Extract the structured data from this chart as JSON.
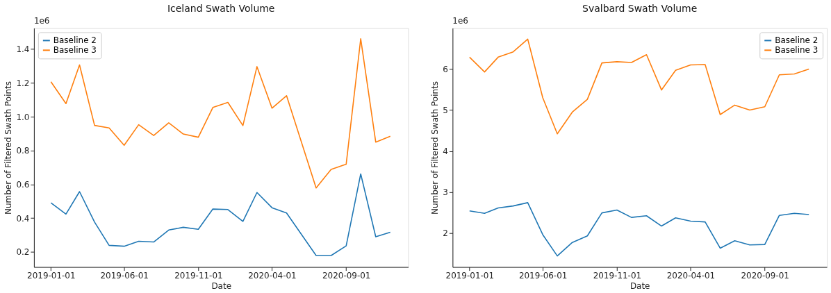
{
  "chart_data": [
    {
      "type": "line",
      "title": "Iceland Swath Volume",
      "xlabel": "Date",
      "ylabel": "Number of Filtered Swath Points",
      "annotations": [
        "1e6"
      ],
      "x": [
        "2019-01-01",
        "2019-02-01",
        "2019-03-01",
        "2019-04-01",
        "2019-05-01",
        "2019-06-01",
        "2019-07-01",
        "2019-08-01",
        "2019-09-01",
        "2019-10-01",
        "2019-11-01",
        "2019-12-01",
        "2020-01-01",
        "2020-02-01",
        "2020-03-01",
        "2020-04-01",
        "2020-05-01",
        "2020-07-01",
        "2020-08-01",
        "2020-09-01",
        "2020-10-01",
        "2020-11-01",
        "2020-12-01"
      ],
      "series": [
        {
          "name": "Baseline 2",
          "color": "#1f77b4",
          "values": [
            0.491,
            0.424,
            0.557,
            0.377,
            0.239,
            0.234,
            0.263,
            0.259,
            0.33,
            0.346,
            0.334,
            0.454,
            0.451,
            0.381,
            0.552,
            0.462,
            0.431,
            0.179,
            0.179,
            0.236,
            0.662,
            0.29,
            0.317
          ]
        },
        {
          "name": "Baseline 3",
          "color": "#ff7f0e",
          "values": [
            1.207,
            1.078,
            1.307,
            0.949,
            0.934,
            0.831,
            0.953,
            0.889,
            0.964,
            0.898,
            0.879,
            1.055,
            1.085,
            0.948,
            1.297,
            1.051,
            1.125,
            0.579,
            0.689,
            0.719,
            1.462,
            0.85,
            0.885
          ]
        }
      ],
      "xlim": [
        "2018-11-27",
        "2021-01-07"
      ],
      "xticks": [
        {
          "value": "2019-01-01",
          "label": "2019-01-01"
        },
        {
          "value": "2019-06-01",
          "label": "2019-06-01"
        },
        {
          "value": "2019-11-01",
          "label": "2019-11-01"
        },
        {
          "value": "2020-04-01",
          "label": "2020-04-01"
        },
        {
          "value": "2020-09-01",
          "label": "2020-09-01"
        }
      ],
      "ylim": [
        0.111,
        1.525
      ],
      "yticks": [
        0.2,
        0.4,
        0.6,
        0.8,
        {
          "value": 1,
          "label": "1.0"
        },
        1.2,
        1.4
      ],
      "grid": false,
      "legend": "top left",
      "marker": "none",
      "line_style": "solid"
    },
    {
      "type": "line",
      "title": "Svalbard Swath Volume",
      "xlabel": "Date",
      "ylabel": "Number of Filtered Swath Points",
      "annotations": [
        "1e6"
      ],
      "x": [
        "2019-01-01",
        "2019-02-01",
        "2019-03-01",
        "2019-04-01",
        "2019-05-01",
        "2019-06-01",
        "2019-07-01",
        "2019-08-01",
        "2019-09-01",
        "2019-10-01",
        "2019-11-01",
        "2019-12-01",
        "2020-01-01",
        "2020-02-01",
        "2020-03-01",
        "2020-04-01",
        "2020-05-01",
        "2020-06-01",
        "2020-07-01",
        "2020-08-01",
        "2020-09-01",
        "2020-10-01",
        "2020-11-01",
        "2020-12-01"
      ],
      "series": [
        {
          "name": "Baseline 2",
          "color": "#1f77b4",
          "values": [
            2.54,
            2.48,
            2.61,
            2.66,
            2.74,
            1.96,
            1.44,
            1.77,
            1.93,
            2.49,
            2.56,
            2.38,
            2.42,
            2.17,
            2.37,
            2.29,
            2.27,
            1.63,
            1.81,
            1.71,
            1.72,
            2.43,
            2.48,
            2.45
          ]
        },
        {
          "name": "Baseline 3",
          "color": "#ff7f0e",
          "values": [
            6.29,
            5.93,
            6.29,
            6.42,
            6.73,
            5.3,
            4.42,
            4.95,
            5.26,
            6.15,
            6.18,
            6.16,
            6.35,
            5.49,
            5.97,
            6.1,
            6.11,
            4.89,
            5.12,
            5.0,
            5.08,
            5.86,
            5.88,
            6.0
          ]
        }
      ],
      "xlim": [
        "2018-11-27",
        "2021-01-07"
      ],
      "xticks": [
        {
          "value": "2019-01-01",
          "label": "2019-01-01"
        },
        {
          "value": "2019-06-01",
          "label": "2019-06-01"
        },
        {
          "value": "2019-11-01",
          "label": "2019-11-01"
        },
        {
          "value": "2020-04-01",
          "label": "2020-04-01"
        },
        {
          "value": "2020-09-01",
          "label": "2020-09-01"
        }
      ],
      "ylim": [
        1.17,
        7.0
      ],
      "yticks": [
        2,
        3,
        4,
        5,
        6
      ],
      "grid": false,
      "legend": "top right",
      "marker": "none",
      "line_style": "solid"
    }
  ]
}
